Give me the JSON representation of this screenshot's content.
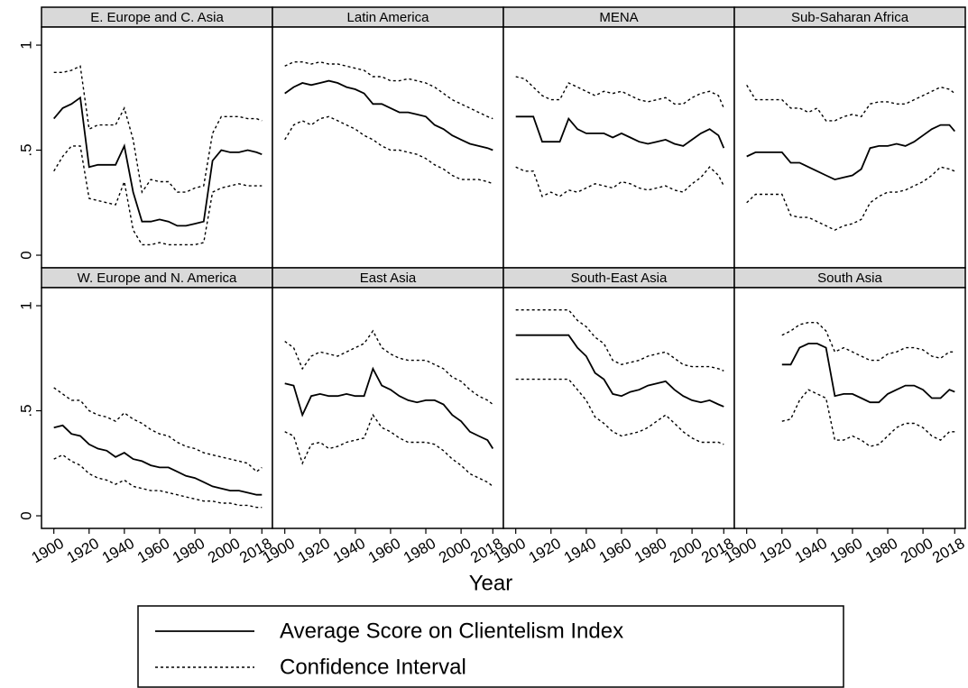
{
  "x_label": "Year",
  "legend": [
    {
      "name": "Average Score on Clientelism Index",
      "dash": "solid"
    },
    {
      "name": "Confidence Interval",
      "dash": "dotted"
    }
  ],
  "axes": {
    "xlim": [
      1893,
      2024
    ],
    "xticks": [
      1900,
      1920,
      1940,
      1960,
      1980,
      2000,
      2018
    ],
    "ylim": [
      -0.06,
      1.086
    ],
    "yticks": [
      0,
      {
        "value": 0.5,
        "label": ".5"
      },
      1
    ]
  },
  "chart_data": [
    {
      "type": "line",
      "title": "E. Europe and C. Asia",
      "x": [
        1900,
        1905,
        1910,
        1915,
        1920,
        1925,
        1930,
        1935,
        1940,
        1945,
        1950,
        1955,
        1960,
        1965,
        1970,
        1975,
        1980,
        1985,
        1990,
        1995,
        2000,
        2005,
        2010,
        2015,
        2018
      ],
      "series": [
        {
          "dash": "solid",
          "color": "#000",
          "values": [
            0.65,
            0.7,
            0.72,
            0.75,
            0.42,
            0.43,
            0.43,
            0.43,
            0.52,
            0.3,
            0.16,
            0.16,
            0.17,
            0.16,
            0.14,
            0.14,
            0.15,
            0.16,
            0.45,
            0.5,
            0.49,
            0.49,
            0.5,
            0.49,
            0.48
          ]
        },
        {
          "dash": "dotted",
          "color": "#000",
          "values": [
            0.87,
            0.87,
            0.88,
            0.9,
            0.6,
            0.62,
            0.62,
            0.62,
            0.7,
            0.55,
            0.3,
            0.36,
            0.35,
            0.35,
            0.3,
            0.3,
            0.32,
            0.33,
            0.58,
            0.66,
            0.66,
            0.66,
            0.65,
            0.65,
            0.64
          ]
        },
        {
          "dash": "dotted",
          "color": "#000",
          "values": [
            0.4,
            0.47,
            0.52,
            0.52,
            0.27,
            0.26,
            0.25,
            0.24,
            0.35,
            0.12,
            0.05,
            0.05,
            0.06,
            0.05,
            0.05,
            0.05,
            0.05,
            0.06,
            0.3,
            0.32,
            0.33,
            0.34,
            0.33,
            0.33,
            0.33
          ]
        }
      ]
    },
    {
      "type": "line",
      "title": "Latin America",
      "x": [
        1900,
        1905,
        1910,
        1915,
        1920,
        1925,
        1930,
        1935,
        1940,
        1945,
        1950,
        1955,
        1960,
        1965,
        1970,
        1975,
        1980,
        1985,
        1990,
        1995,
        2000,
        2005,
        2010,
        2015,
        2018
      ],
      "series": [
        {
          "dash": "solid",
          "color": "#000",
          "values": [
            0.77,
            0.8,
            0.82,
            0.81,
            0.82,
            0.83,
            0.82,
            0.8,
            0.79,
            0.77,
            0.72,
            0.72,
            0.7,
            0.68,
            0.68,
            0.67,
            0.66,
            0.62,
            0.6,
            0.57,
            0.55,
            0.53,
            0.52,
            0.51,
            0.5
          ]
        },
        {
          "dash": "dotted",
          "color": "#000",
          "values": [
            0.9,
            0.92,
            0.92,
            0.91,
            0.92,
            0.91,
            0.91,
            0.9,
            0.89,
            0.88,
            0.85,
            0.85,
            0.83,
            0.83,
            0.84,
            0.83,
            0.82,
            0.8,
            0.77,
            0.74,
            0.72,
            0.7,
            0.68,
            0.66,
            0.65
          ]
        },
        {
          "dash": "dotted",
          "color": "#000",
          "values": [
            0.55,
            0.62,
            0.64,
            0.62,
            0.65,
            0.66,
            0.64,
            0.62,
            0.6,
            0.57,
            0.55,
            0.52,
            0.5,
            0.5,
            0.49,
            0.48,
            0.46,
            0.43,
            0.41,
            0.38,
            0.36,
            0.36,
            0.36,
            0.35,
            0.34
          ]
        }
      ]
    },
    {
      "type": "line",
      "title": "MENA",
      "x": [
        1900,
        1905,
        1910,
        1915,
        1920,
        1925,
        1930,
        1935,
        1940,
        1945,
        1950,
        1955,
        1960,
        1965,
        1970,
        1975,
        1980,
        1985,
        1990,
        1995,
        2000,
        2005,
        2010,
        2015,
        2018
      ],
      "series": [
        {
          "dash": "solid",
          "color": "#000",
          "values": [
            0.66,
            0.66,
            0.66,
            0.54,
            0.54,
            0.54,
            0.65,
            0.6,
            0.58,
            0.58,
            0.58,
            0.56,
            0.58,
            0.56,
            0.54,
            0.53,
            0.54,
            0.55,
            0.53,
            0.52,
            0.55,
            0.58,
            0.6,
            0.57,
            0.51
          ]
        },
        {
          "dash": "dotted",
          "color": "#000",
          "values": [
            0.85,
            0.84,
            0.8,
            0.76,
            0.74,
            0.74,
            0.82,
            0.8,
            0.78,
            0.76,
            0.78,
            0.77,
            0.78,
            0.76,
            0.74,
            0.73,
            0.74,
            0.75,
            0.72,
            0.72,
            0.75,
            0.77,
            0.78,
            0.76,
            0.7
          ]
        },
        {
          "dash": "dotted",
          "color": "#000",
          "values": [
            0.42,
            0.4,
            0.4,
            0.28,
            0.3,
            0.28,
            0.31,
            0.3,
            0.32,
            0.34,
            0.33,
            0.32,
            0.35,
            0.34,
            0.32,
            0.31,
            0.32,
            0.33,
            0.31,
            0.3,
            0.34,
            0.37,
            0.42,
            0.38,
            0.33
          ]
        }
      ]
    },
    {
      "type": "line",
      "title": "Sub-Saharan Africa",
      "x": [
        1900,
        1905,
        1910,
        1915,
        1920,
        1925,
        1930,
        1935,
        1940,
        1945,
        1950,
        1955,
        1960,
        1965,
        1970,
        1975,
        1980,
        1985,
        1990,
        1995,
        2000,
        2005,
        2010,
        2015,
        2018
      ],
      "series": [
        {
          "dash": "solid",
          "color": "#000",
          "values": [
            0.47,
            0.49,
            0.49,
            0.49,
            0.49,
            0.44,
            0.44,
            0.42,
            0.4,
            0.38,
            0.36,
            0.37,
            0.38,
            0.41,
            0.51,
            0.52,
            0.52,
            0.53,
            0.52,
            0.54,
            0.57,
            0.6,
            0.62,
            0.62,
            0.59
          ]
        },
        {
          "dash": "dotted",
          "color": "#000",
          "values": [
            0.81,
            0.74,
            0.74,
            0.74,
            0.74,
            0.7,
            0.7,
            0.68,
            0.7,
            0.64,
            0.64,
            0.66,
            0.67,
            0.66,
            0.72,
            0.73,
            0.73,
            0.72,
            0.72,
            0.74,
            0.76,
            0.78,
            0.8,
            0.79,
            0.77
          ]
        },
        {
          "dash": "dotted",
          "color": "#000",
          "values": [
            0.25,
            0.29,
            0.29,
            0.29,
            0.29,
            0.19,
            0.18,
            0.18,
            0.16,
            0.14,
            0.12,
            0.14,
            0.15,
            0.17,
            0.25,
            0.28,
            0.3,
            0.3,
            0.31,
            0.33,
            0.35,
            0.38,
            0.42,
            0.41,
            0.4
          ]
        }
      ]
    },
    {
      "type": "line",
      "title": "W. Europe and N. America",
      "x": [
        1900,
        1905,
        1910,
        1915,
        1920,
        1925,
        1930,
        1935,
        1940,
        1945,
        1950,
        1955,
        1960,
        1965,
        1970,
        1975,
        1980,
        1985,
        1990,
        1995,
        2000,
        2005,
        2010,
        2015,
        2018
      ],
      "series": [
        {
          "dash": "solid",
          "color": "#000",
          "values": [
            0.42,
            0.43,
            0.39,
            0.38,
            0.34,
            0.32,
            0.31,
            0.28,
            0.3,
            0.27,
            0.26,
            0.24,
            0.23,
            0.23,
            0.21,
            0.19,
            0.18,
            0.16,
            0.14,
            0.13,
            0.12,
            0.12,
            0.11,
            0.1,
            0.1
          ]
        },
        {
          "dash": "dotted",
          "color": "#000",
          "values": [
            0.61,
            0.58,
            0.55,
            0.55,
            0.5,
            0.48,
            0.47,
            0.45,
            0.49,
            0.46,
            0.44,
            0.41,
            0.39,
            0.38,
            0.35,
            0.33,
            0.32,
            0.3,
            0.29,
            0.28,
            0.27,
            0.26,
            0.25,
            0.21,
            0.23
          ]
        },
        {
          "dash": "dotted",
          "color": "#000",
          "values": [
            0.27,
            0.29,
            0.26,
            0.24,
            0.2,
            0.18,
            0.17,
            0.15,
            0.17,
            0.14,
            0.13,
            0.12,
            0.12,
            0.11,
            0.1,
            0.09,
            0.08,
            0.07,
            0.07,
            0.06,
            0.06,
            0.05,
            0.05,
            0.04,
            0.04
          ]
        }
      ]
    },
    {
      "type": "line",
      "title": "East Asia",
      "x": [
        1900,
        1905,
        1910,
        1915,
        1920,
        1925,
        1930,
        1935,
        1940,
        1945,
        1950,
        1955,
        1960,
        1965,
        1970,
        1975,
        1980,
        1985,
        1990,
        1995,
        2000,
        2005,
        2010,
        2015,
        2018
      ],
      "series": [
        {
          "dash": "solid",
          "color": "#000",
          "values": [
            0.63,
            0.62,
            0.48,
            0.57,
            0.58,
            0.57,
            0.57,
            0.58,
            0.57,
            0.57,
            0.7,
            0.62,
            0.6,
            0.57,
            0.55,
            0.54,
            0.55,
            0.55,
            0.53,
            0.48,
            0.45,
            0.4,
            0.38,
            0.36,
            0.32
          ]
        },
        {
          "dash": "dotted",
          "color": "#000",
          "values": [
            0.83,
            0.8,
            0.7,
            0.76,
            0.78,
            0.77,
            0.76,
            0.78,
            0.8,
            0.82,
            0.88,
            0.8,
            0.77,
            0.75,
            0.74,
            0.74,
            0.74,
            0.72,
            0.7,
            0.66,
            0.64,
            0.6,
            0.57,
            0.55,
            0.53
          ]
        },
        {
          "dash": "dotted",
          "color": "#000",
          "values": [
            0.4,
            0.38,
            0.25,
            0.34,
            0.35,
            0.32,
            0.33,
            0.35,
            0.36,
            0.37,
            0.48,
            0.42,
            0.4,
            0.37,
            0.35,
            0.35,
            0.35,
            0.34,
            0.31,
            0.27,
            0.24,
            0.2,
            0.18,
            0.16,
            0.14
          ]
        }
      ]
    },
    {
      "type": "line",
      "title": "South-East Asia",
      "x": [
        1900,
        1905,
        1910,
        1915,
        1920,
        1925,
        1930,
        1935,
        1940,
        1945,
        1950,
        1955,
        1960,
        1965,
        1970,
        1975,
        1980,
        1985,
        1990,
        1995,
        2000,
        2005,
        2010,
        2015,
        2018
      ],
      "series": [
        {
          "dash": "solid",
          "color": "#000",
          "values": [
            0.86,
            0.86,
            0.86,
            0.86,
            0.86,
            0.86,
            0.86,
            0.8,
            0.76,
            0.68,
            0.65,
            0.58,
            0.57,
            0.59,
            0.6,
            0.62,
            0.63,
            0.64,
            0.6,
            0.57,
            0.55,
            0.54,
            0.55,
            0.53,
            0.52
          ]
        },
        {
          "dash": "dotted",
          "color": "#000",
          "values": [
            0.98,
            0.98,
            0.98,
            0.98,
            0.98,
            0.98,
            0.98,
            0.93,
            0.9,
            0.85,
            0.82,
            0.74,
            0.72,
            0.73,
            0.74,
            0.76,
            0.77,
            0.78,
            0.75,
            0.72,
            0.71,
            0.71,
            0.71,
            0.7,
            0.69
          ]
        },
        {
          "dash": "dotted",
          "color": "#000",
          "values": [
            0.65,
            0.65,
            0.65,
            0.65,
            0.65,
            0.65,
            0.65,
            0.6,
            0.55,
            0.47,
            0.44,
            0.4,
            0.38,
            0.39,
            0.4,
            0.42,
            0.45,
            0.48,
            0.44,
            0.4,
            0.37,
            0.35,
            0.35,
            0.35,
            0.34
          ]
        }
      ]
    },
    {
      "type": "line",
      "title": "South Asia",
      "x": [
        1900,
        1905,
        1910,
        1915,
        1920,
        1925,
        1930,
        1935,
        1940,
        1945,
        1950,
        1955,
        1960,
        1965,
        1970,
        1975,
        1980,
        1985,
        1990,
        1995,
        2000,
        2005,
        2010,
        2015,
        2018
      ],
      "series": [
        {
          "dash": "solid",
          "color": "#000",
          "values": [
            null,
            null,
            null,
            null,
            0.72,
            0.72,
            0.8,
            0.82,
            0.82,
            0.8,
            0.57,
            0.58,
            0.58,
            0.56,
            0.54,
            0.54,
            0.58,
            0.6,
            0.62,
            0.62,
            0.6,
            0.56,
            0.56,
            0.6,
            0.59
          ]
        },
        {
          "dash": "dotted",
          "color": "#000",
          "values": [
            null,
            null,
            null,
            null,
            0.86,
            0.88,
            0.91,
            0.92,
            0.92,
            0.88,
            0.78,
            0.8,
            0.78,
            0.76,
            0.74,
            0.74,
            0.77,
            0.78,
            0.8,
            0.8,
            0.79,
            0.76,
            0.75,
            0.78,
            0.78
          ]
        },
        {
          "dash": "dotted",
          "color": "#000",
          "values": [
            null,
            null,
            null,
            null,
            0.45,
            0.46,
            0.55,
            0.6,
            0.58,
            0.56,
            0.36,
            0.36,
            0.38,
            0.36,
            0.33,
            0.34,
            0.38,
            0.42,
            0.44,
            0.44,
            0.42,
            0.38,
            0.36,
            0.4,
            0.4
          ]
        }
      ]
    }
  ]
}
